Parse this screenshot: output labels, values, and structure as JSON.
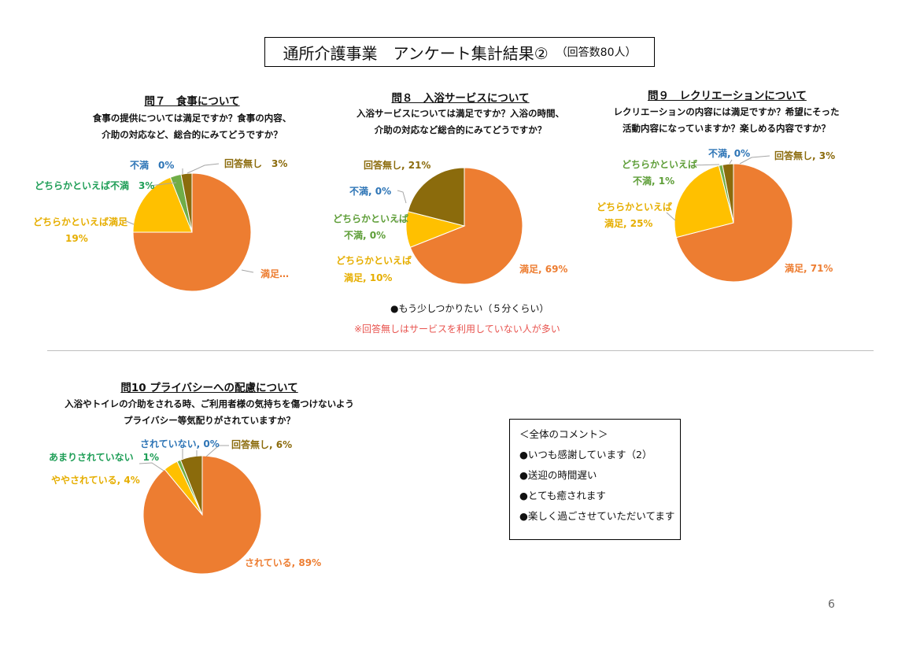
{
  "title": {
    "main": "通所介護事業　アンケート集計結果②",
    "sub": "（回答数80人）"
  },
  "chart_data": [
    {
      "type": "pie",
      "title": "問７　食事について",
      "question": [
        "食事の提供については満足ですか？食事の内容、",
        "介助の対応など、総合的にみてどうですか？"
      ],
      "series": [
        {
          "values": [
            75,
            19,
            3,
            0,
            3
          ]
        }
      ],
      "categories": [
        "満足",
        "どちらかといえば満足",
        "どちらかといえば不満",
        "不満",
        "回答無し"
      ],
      "colors": [
        "#ED7D31",
        "#FFC000",
        "#70AD47",
        "#4472C4",
        "#8B6B0C"
      ],
      "labels": [
        "満足…",
        "どちらかといえば満足",
        "19%",
        "どちらかといえば不満　3%",
        "不満　0%",
        "回答無し　3%"
      ]
    },
    {
      "type": "pie",
      "title": "問８　入浴サービスについて",
      "question": [
        "入浴サービスについては満足ですか？入浴の時間、",
        "介助の対応など総合的にみてどうですか？"
      ],
      "series": [
        {
          "values": [
            69,
            10,
            0,
            0,
            21
          ]
        }
      ],
      "categories": [
        "満足",
        "どちらかといえば満足",
        "どちらかといえば不満",
        "不満",
        "回答無し"
      ],
      "colors": [
        "#ED7D31",
        "#FFC000",
        "#70AD47",
        "#4472C4",
        "#8B6B0C"
      ],
      "labels": [
        "満足, 69%",
        "どちらかといえば",
        "満足, 10%",
        "どちらかといえば",
        "不満, 0%",
        "不満, 0%",
        "回答無し, 21%"
      ]
    },
    {
      "type": "pie",
      "title": "問９　レクリエーションについて",
      "question": [
        "レクリエーションの内容には満足ですか？希望にそった",
        "活動内容になっていますか？楽しめる内容ですか？"
      ],
      "series": [
        {
          "values": [
            71,
            25,
            1,
            0,
            3
          ]
        }
      ],
      "categories": [
        "満足",
        "どちらかといえば満足",
        "どちらかといえば不満",
        "不満",
        "回答無し"
      ],
      "colors": [
        "#ED7D31",
        "#FFC000",
        "#70AD47",
        "#4472C4",
        "#8B6B0C"
      ],
      "labels": [
        "満足, 71%",
        "どちらかといえば",
        "満足, 25%",
        "どちらかといえば",
        "不満, 1%",
        "不満, 0%",
        "回答無し, 3%"
      ]
    },
    {
      "type": "pie",
      "title": "問10  プライバシーへの配慮について",
      "question": [
        "入浴やトイレの介助をされる時、ご利用者様の気持ちを傷つけないよう",
        "プライバシー等気配りがされていますか？"
      ],
      "series": [
        {
          "values": [
            89,
            4,
            1,
            0,
            6
          ]
        }
      ],
      "categories": [
        "されている",
        "ややされている",
        "あまりされていない",
        "されていない",
        "回答無し"
      ],
      "colors": [
        "#ED7D31",
        "#FFC000",
        "#70AD47",
        "#4472C4",
        "#8B6B0C"
      ],
      "labels": [
        "されている, 89%",
        "ややされている, 4%",
        "あまりされていない　1%",
        "されていない, 0%",
        "回答無し, 6%"
      ]
    }
  ],
  "notes": {
    "comment": "●もう少しつかりたい（５分くらい）",
    "warning": "※回答無しはサービスを利用していない人が多い"
  },
  "comment_box": {
    "title": "＜全体のコメント＞",
    "items": [
      "●いつも感謝しています（2）",
      "●送迎の時間遅い",
      "●とても癒されます",
      "●楽しく過ごさせていただいてます"
    ]
  },
  "page_number": "6"
}
